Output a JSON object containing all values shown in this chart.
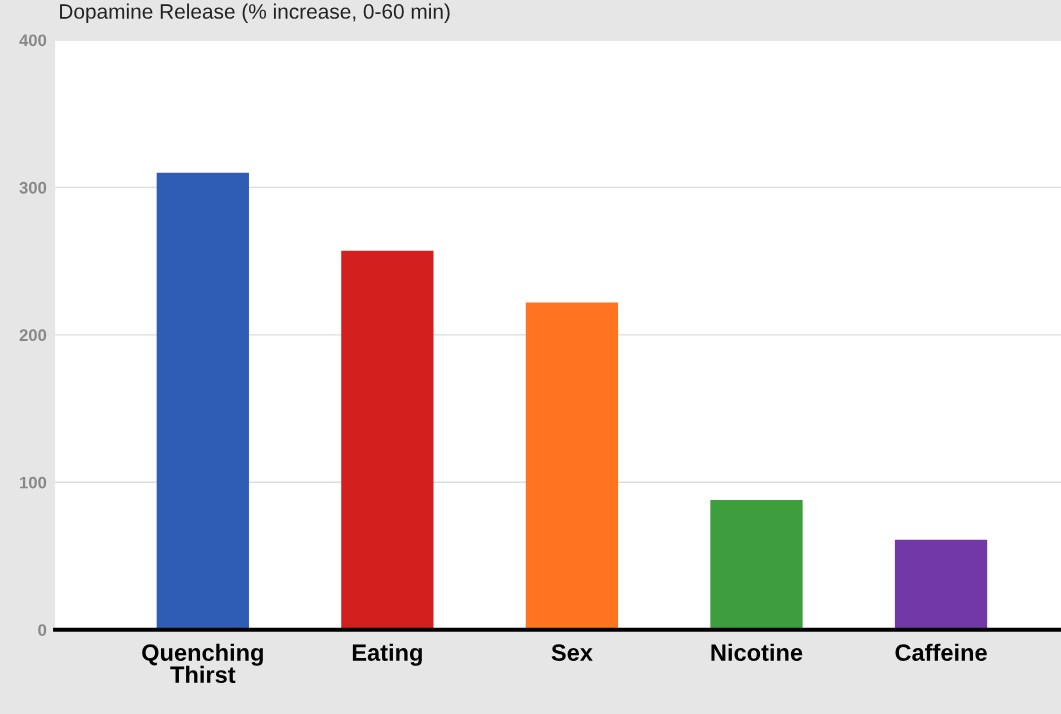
{
  "chart_data": {
    "type": "bar",
    "title": "Dopamine Release (% increase, 0-60 min)",
    "categories": [
      "Quenching\nThirst",
      "Eating",
      "Sex",
      "Nicotine",
      "Caffeine"
    ],
    "values": [
      310,
      257,
      222,
      88,
      61
    ],
    "colors": [
      "#2f5cb5",
      "#d41f1f",
      "#ff7420",
      "#3c9e3c",
      "#7338a8"
    ],
    "ylim": [
      0,
      400
    ],
    "yticks": [
      0,
      100,
      200,
      300,
      400
    ],
    "grid": "y"
  }
}
